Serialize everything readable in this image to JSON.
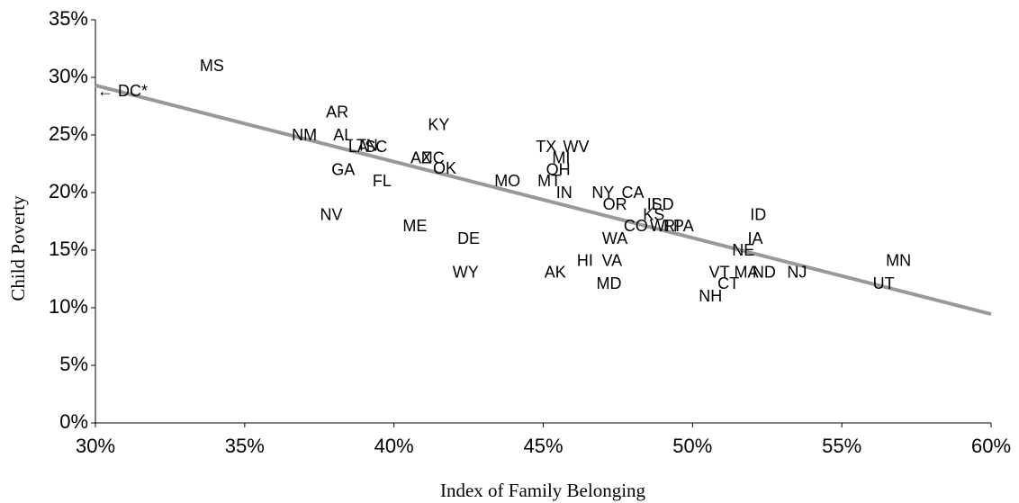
{
  "chart_data": {
    "type": "scatter",
    "x_label": "Index of Family Belonging",
    "y_label": "Child Poverty",
    "xlim": [
      30,
      60
    ],
    "ylim": [
      0,
      35
    ],
    "xticks": [
      {
        "value": 30,
        "label": "30%"
      },
      {
        "value": 35,
        "label": "35%"
      },
      {
        "value": 40,
        "label": "40%"
      },
      {
        "value": 45,
        "label": "45%"
      },
      {
        "value": 50,
        "label": "50%"
      },
      {
        "value": 55,
        "label": "55%"
      },
      {
        "value": 60,
        "label": "60%"
      }
    ],
    "yticks": [
      {
        "value": 0,
        "label": "0%"
      },
      {
        "value": 5,
        "label": "5%"
      },
      {
        "value": 10,
        "label": "10%"
      },
      {
        "value": 15,
        "label": "15%"
      },
      {
        "value": 20,
        "label": "20%"
      },
      {
        "value": 25,
        "label": "25%"
      },
      {
        "value": 30,
        "label": "30%"
      },
      {
        "value": 35,
        "label": "35%"
      }
    ],
    "labels": [
      "MS",
      "AR",
      "NM",
      "AL",
      "LA",
      "TN",
      "SC",
      "GA",
      "FL",
      "KY",
      "AZ",
      "NC",
      "OK",
      "NV",
      "ME",
      "DE",
      "WY",
      "MO",
      "MT",
      "IN",
      "TX",
      "WV",
      "MI",
      "OH",
      "NY",
      "CA",
      "OR",
      "IL",
      "SD",
      "KS",
      "CO",
      "WI",
      "RI",
      "PA",
      "WA",
      "AK",
      "HI",
      "VA",
      "MD",
      "ID",
      "IA",
      "NE",
      "VT",
      "MA",
      "ND",
      "NJ",
      "CT",
      "NH",
      "MN",
      "UT"
    ],
    "x": [
      33.9,
      38.1,
      37.0,
      38.3,
      38.8,
      39.1,
      39.4,
      38.3,
      39.6,
      41.5,
      40.9,
      41.3,
      41.7,
      37.9,
      40.7,
      42.5,
      42.4,
      43.8,
      45.2,
      45.7,
      45.1,
      46.1,
      45.6,
      45.5,
      47.0,
      48.0,
      47.4,
      48.7,
      49.0,
      48.7,
      48.1,
      48.9,
      49.3,
      49.7,
      47.4,
      45.4,
      46.4,
      47.3,
      47.2,
      52.2,
      52.1,
      51.7,
      50.9,
      51.8,
      52.4,
      53.5,
      51.2,
      50.6,
      56.9,
      56.4
    ],
    "y": [
      30.9,
      26.9,
      24.9,
      24.9,
      23.9,
      24.0,
      23.9,
      21.9,
      20.9,
      25.8,
      22.9,
      22.9,
      22.0,
      18.0,
      17.0,
      15.9,
      13.0,
      20.9,
      20.9,
      19.9,
      23.9,
      23.9,
      22.9,
      21.9,
      19.9,
      19.9,
      18.9,
      18.9,
      18.9,
      18.0,
      17.0,
      17.0,
      17.0,
      17.0,
      15.9,
      13.0,
      14.0,
      14.0,
      12.0,
      18.0,
      15.9,
      14.9,
      13.0,
      13.0,
      13.0,
      13.0,
      12.0,
      10.9,
      14.0,
      12.0
    ],
    "trendline": {
      "x": [
        30,
        60
      ],
      "y": [
        29.3,
        9.45
      ],
      "color": "#999999"
    },
    "annotations": [
      "← DC*"
    ]
  }
}
